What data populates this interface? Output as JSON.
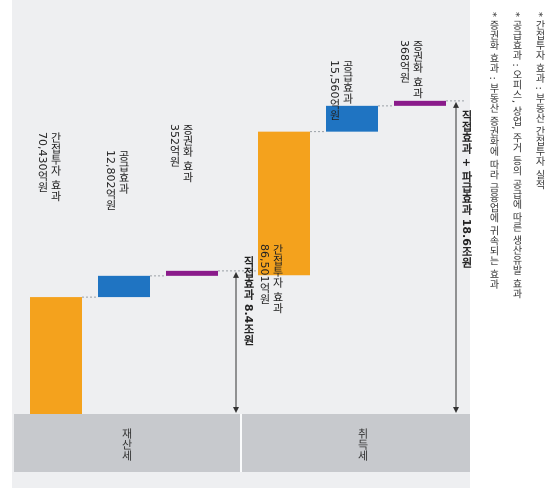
{
  "colors": {
    "investment": "#f4a21d",
    "supply": "#1f74c2",
    "rights": "#8a1b8b",
    "base": "#c7c9cd",
    "panel": "#eeeff1"
  },
  "chart_data": {
    "type": "waterfall",
    "groups": [
      {
        "base_label": "재산세",
        "bars": [
          {
            "name": "간접투자 효과",
            "value": 70430,
            "value_label": "70,430억원"
          },
          {
            "name": "공급효과",
            "value": 12802,
            "value_label": "12,802억원"
          },
          {
            "name": "증권화 효과",
            "value": 352,
            "value_label": "352억원"
          }
        ],
        "total_label": "직접효과 8.4조원"
      },
      {
        "base_label": "취득세",
        "bars": [
          {
            "name": "간접투자 효과",
            "value": 86501,
            "value_label": "86,501억원"
          },
          {
            "name": "공급효과",
            "value": 15560,
            "value_label": "15,560억원"
          },
          {
            "name": "증권화 효과",
            "value": 368,
            "value_label": "368억원"
          }
        ],
        "total_label": "직접효과 + 파급효과 18.6조원"
      }
    ]
  },
  "notes": [
    "간접투자 효과 : 부동산 간접투자 실적",
    "공급효과 : 오피스, 상업, 주거 등의 공급에 따른 생산유발 효과",
    "증권화 효과 : 부동산 증권화에 따라 금융업에 귀속되는 효과"
  ]
}
